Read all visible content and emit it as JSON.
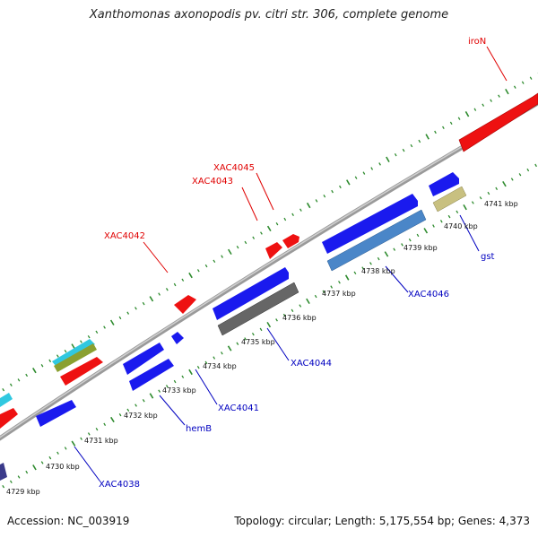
{
  "title": "Xanthomonas axonopodis pv. citri str. 306, complete genome",
  "footer": {
    "accession": "Accession: NC_003919",
    "summary": "Topology: circular; Length: 5,175,554 bp; Genes: 4,373"
  },
  "colors": {
    "backbone": "#8c8c8c",
    "ruler_dots": "#2e8b2e",
    "forward_label": "#e00000",
    "reverse_label": "#0000c0"
  },
  "kbp_labels": [
    {
      "id": "kbp-4729",
      "text": "4729 kbp"
    },
    {
      "id": "kbp-4730",
      "text": "4730 kbp"
    },
    {
      "id": "kbp-4731",
      "text": "4731 kbp"
    },
    {
      "id": "kbp-4732",
      "text": "4732 kbp"
    },
    {
      "id": "kbp-4733",
      "text": "4733 kbp"
    },
    {
      "id": "kbp-4734",
      "text": "4734 kbp"
    },
    {
      "id": "kbp-4735",
      "text": "4735 kbp"
    },
    {
      "id": "kbp-4736",
      "text": "4736 kbp"
    },
    {
      "id": "kbp-4737",
      "text": "4737 kbp"
    },
    {
      "id": "kbp-4738",
      "text": "4738 kbp"
    },
    {
      "id": "kbp-4739",
      "text": "4739 kbp"
    },
    {
      "id": "kbp-4740",
      "text": "4740 kbp"
    },
    {
      "id": "kbp-4741",
      "text": "4741 kbp"
    }
  ],
  "gene_labels": [
    {
      "id": "label-iron",
      "text": "iroN",
      "strand": "forward"
    },
    {
      "id": "label-xac4045",
      "text": "XAC4045",
      "strand": "forward"
    },
    {
      "id": "label-xac4043",
      "text": "XAC4043",
      "strand": "forward"
    },
    {
      "id": "label-xac4042",
      "text": "XAC4042",
      "strand": "forward"
    },
    {
      "id": "label-gst",
      "text": "gst",
      "strand": "reverse"
    },
    {
      "id": "label-xac4046",
      "text": "XAC4046",
      "strand": "reverse"
    },
    {
      "id": "label-xac4044",
      "text": "XAC4044",
      "strand": "reverse"
    },
    {
      "id": "label-xac4041",
      "text": "XAC4041",
      "strand": "reverse"
    },
    {
      "id": "label-hemb",
      "text": "hemB",
      "strand": "reverse"
    },
    {
      "id": "label-xac4038",
      "text": "XAC4038",
      "strand": "reverse"
    }
  ],
  "feature_colors": {
    "red": "#ee1111",
    "blue": "#1a1aee",
    "steelblue": "#4a86c8",
    "gray": "#666666",
    "khaki": "#c8c080",
    "cyan": "#30c8e0",
    "olive": "#8aa030",
    "navy": "#3a3a8a"
  }
}
